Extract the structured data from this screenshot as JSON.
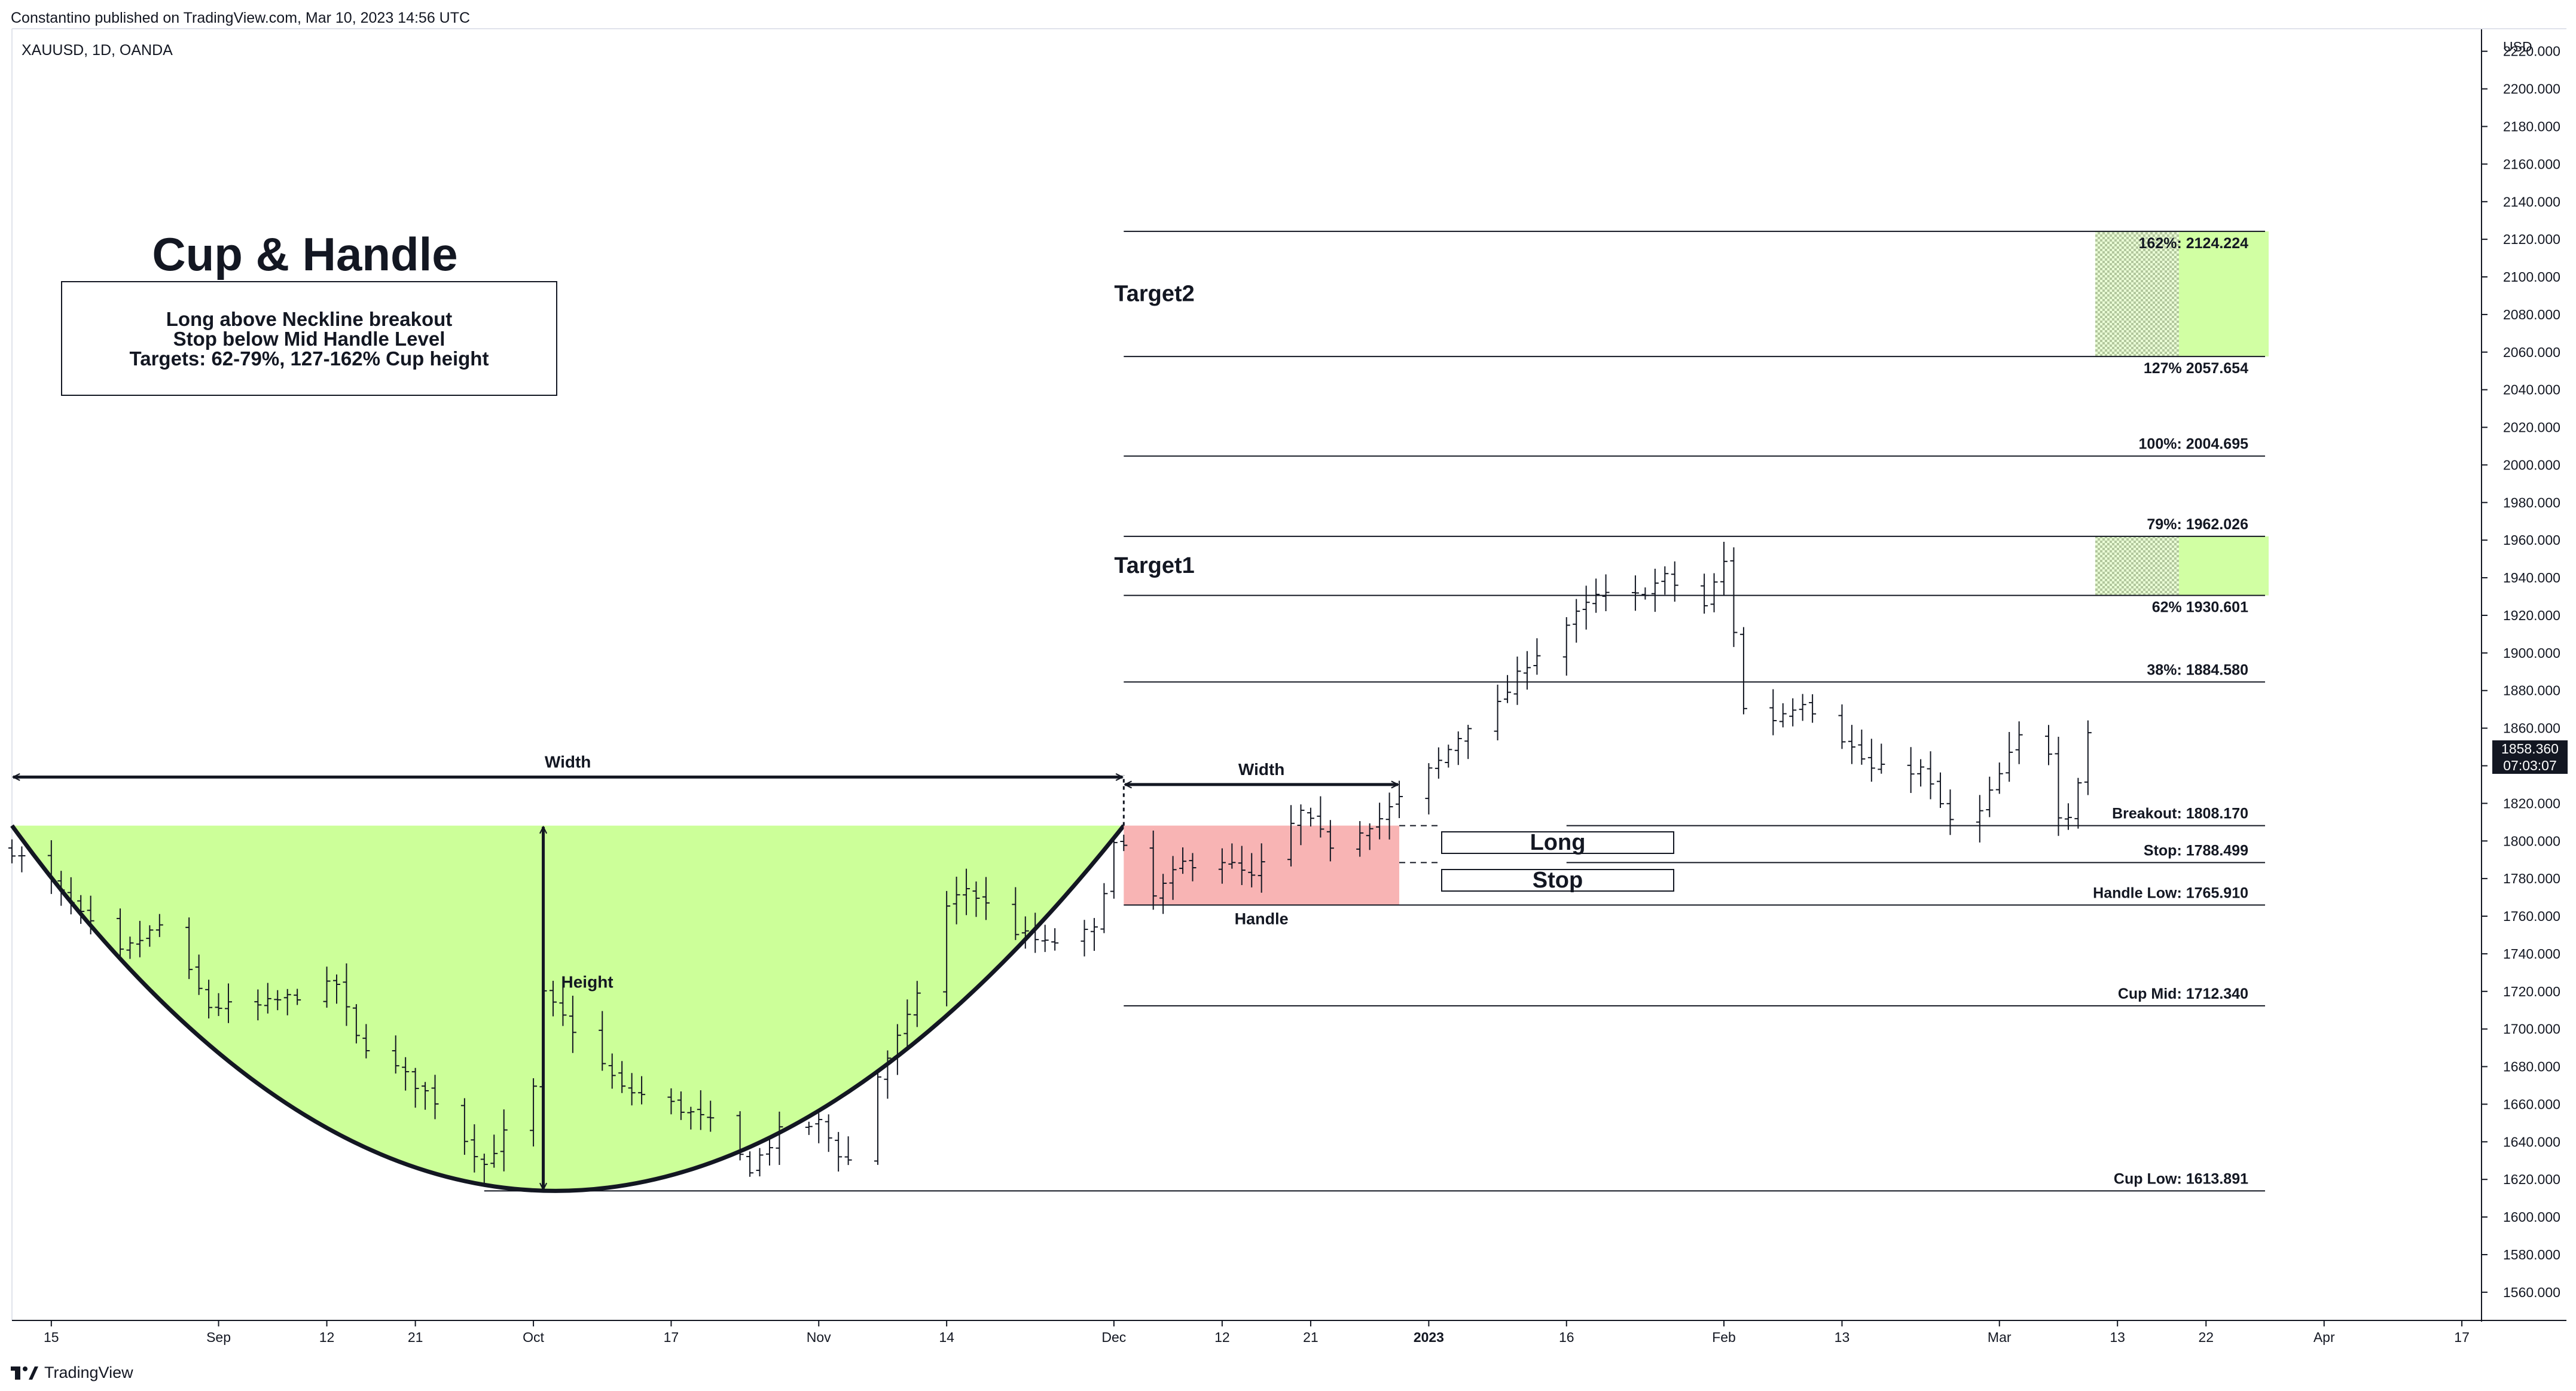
{
  "header": {
    "published": "Constantino published on TradingView.com, Mar 10, 2023 14:56 UTC",
    "symbol": "XAUUSD, 1D, OANDA"
  },
  "footer": {
    "brand": "TradingView"
  },
  "colors": {
    "cup_fill": "#ccff99",
    "handle_fill": "#f8b4b4",
    "target_fill": "#ccff99",
    "price_tag": "#131722"
  },
  "chart_data": {
    "type": "bar",
    "title": "Cup & Handle",
    "subtitle_lines": [
      "Long above Neckline breakout",
      "Stop below Mid Handle Level",
      "Targets: 62-79%, 127-162% Cup height"
    ],
    "symbol": "XAUUSD",
    "interval": "1D",
    "source": "OANDA",
    "y_axis": {
      "unit_label": "USD",
      "ylim": [
        1545,
        2232
      ],
      "ticks": [
        2220,
        2200,
        2180,
        2160,
        2140,
        2120,
        2100,
        2080,
        2060,
        2040,
        2020,
        2000,
        1980,
        1960,
        1940,
        1920,
        1900,
        1880,
        1860,
        1840,
        1820,
        1800,
        1780,
        1760,
        1740,
        1720,
        1700,
        1680,
        1660,
        1640,
        1620,
        1600,
        1580,
        1560
      ],
      "tick_labels": [
        "2220.000",
        "2200.000",
        "2180.000",
        "2160.000",
        "2140.000",
        "2120.000",
        "2100.000",
        "2080.000",
        "2060.000",
        "2040.000",
        "2020.000",
        "2000.000",
        "1980.000",
        "1960.000",
        "1940.000",
        "1920.000",
        "1900.000",
        "1880.000",
        "1860.000",
        "1840.000",
        "1820.000",
        "1800.000",
        "1780.000",
        "1760.000",
        "1740.000",
        "1720.000",
        "1700.000",
        "1680.000",
        "1660.000",
        "1640.000",
        "1620.000",
        "1600.000",
        "1580.000",
        "1560.000"
      ]
    },
    "x_axis": {
      "range": [
        "2022-08-11",
        "2023-04-19"
      ],
      "ticks": [
        {
          "date": "2022-08-15",
          "label": "15"
        },
        {
          "date": "2022-09-01",
          "label": "Sep"
        },
        {
          "date": "2022-09-12",
          "label": "12"
        },
        {
          "date": "2022-09-21",
          "label": "21"
        },
        {
          "date": "2022-10-03",
          "label": "Oct"
        },
        {
          "date": "2022-10-17",
          "label": "17"
        },
        {
          "date": "2022-11-01",
          "label": "Nov"
        },
        {
          "date": "2022-11-14",
          "label": "14"
        },
        {
          "date": "2022-12-01",
          "label": "Dec"
        },
        {
          "date": "2022-12-12",
          "label": "12"
        },
        {
          "date": "2022-12-21",
          "label": "21"
        },
        {
          "date": "2023-01-02",
          "label": "2023",
          "bold": true
        },
        {
          "date": "2023-01-16",
          "label": "16"
        },
        {
          "date": "2023-02-01",
          "label": "Feb"
        },
        {
          "date": "2023-02-13",
          "label": "13"
        },
        {
          "date": "2023-03-01",
          "label": "Mar"
        },
        {
          "date": "2023-03-13",
          "label": "13"
        },
        {
          "date": "2023-03-22",
          "label": "22"
        },
        {
          "date": "2023-04-03",
          "label": "Apr"
        },
        {
          "date": "2023-04-17",
          "label": "17"
        }
      ]
    },
    "current_price": {
      "value": "1858.360",
      "countdown": "07:03:07"
    },
    "price_path": [
      [
        "2022-08-11",
        1795
      ],
      [
        "2022-08-15",
        1778
      ],
      [
        "2022-08-18",
        1760
      ],
      [
        "2022-08-22",
        1740
      ],
      [
        "2022-08-26",
        1755
      ],
      [
        "2022-08-31",
        1712
      ],
      [
        "2022-09-05",
        1712
      ],
      [
        "2022-09-09",
        1718
      ],
      [
        "2022-09-13",
        1724
      ],
      [
        "2022-09-15",
        1695
      ],
      [
        "2022-09-20",
        1675
      ],
      [
        "2022-09-23",
        1662
      ],
      [
        "2022-09-28",
        1628
      ],
      [
        "2022-10-03",
        1668
      ],
      [
        "2022-10-04",
        1718
      ],
      [
        "2022-10-07",
        1700
      ],
      [
        "2022-10-12",
        1668
      ],
      [
        "2022-10-17",
        1660
      ],
      [
        "2022-10-21",
        1650
      ],
      [
        "2022-10-25",
        1626
      ],
      [
        "2022-10-28",
        1645
      ],
      [
        "2022-11-01",
        1650
      ],
      [
        "2022-11-03",
        1634
      ],
      [
        "2022-11-04",
        1630
      ],
      [
        "2022-11-07",
        1675
      ],
      [
        "2022-11-10",
        1705
      ],
      [
        "2022-11-14",
        1765
      ],
      [
        "2022-11-16",
        1775
      ],
      [
        "2022-11-21",
        1752
      ],
      [
        "2022-11-24",
        1745
      ],
      [
        "2022-11-29",
        1752
      ],
      [
        "2022-12-01",
        1798
      ],
      [
        "2022-12-02",
        1795
      ],
      [
        "2022-12-05",
        1770
      ],
      [
        "2022-12-08",
        1788
      ],
      [
        "2022-12-12",
        1790
      ],
      [
        "2022-12-15",
        1780
      ],
      [
        "2022-12-20",
        1815
      ],
      [
        "2022-12-23",
        1798
      ],
      [
        "2022-12-28",
        1812
      ],
      [
        "2022-12-30",
        1822
      ],
      [
        "2023-01-03",
        1842
      ],
      [
        "2023-01-06",
        1862
      ],
      [
        "2023-01-09",
        1872
      ],
      [
        "2023-01-12",
        1895
      ],
      [
        "2023-01-16",
        1915
      ],
      [
        "2023-01-19",
        1930
      ],
      [
        "2023-01-23",
        1930
      ],
      [
        "2023-01-26",
        1940
      ],
      [
        "2023-01-30",
        1925
      ],
      [
        "2023-02-01",
        1948
      ],
      [
        "2023-02-02",
        1912
      ],
      [
        "2023-02-03",
        1870
      ],
      [
        "2023-02-06",
        1865
      ],
      [
        "2023-02-09",
        1875
      ],
      [
        "2023-02-13",
        1855
      ],
      [
        "2023-02-16",
        1838
      ],
      [
        "2023-02-21",
        1838
      ],
      [
        "2023-02-24",
        1810
      ],
      [
        "2023-02-27",
        1815
      ],
      [
        "2023-03-01",
        1835
      ],
      [
        "2023-03-03",
        1855
      ],
      [
        "2023-03-06",
        1848
      ],
      [
        "2023-03-07",
        1815
      ],
      [
        "2023-03-08",
        1815
      ],
      [
        "2023-03-09",
        1832
      ],
      [
        "2023-03-10",
        1858
      ]
    ],
    "levels": [
      {
        "value": 2124.224,
        "label": "162%: 2124.224",
        "from": "2022-12-02",
        "to": "2023-03-28"
      },
      {
        "value": 2057.654,
        "label": "127% 2057.654",
        "from": "2022-12-02",
        "to": "2023-03-28"
      },
      {
        "value": 2004.695,
        "label": "100%: 2004.695",
        "from": "2022-12-02",
        "to": "2023-03-28"
      },
      {
        "value": 1962.026,
        "label": "79%: 1962.026",
        "from": "2022-12-02",
        "to": "2023-03-28"
      },
      {
        "value": 1930.601,
        "label": "62% 1930.601",
        "from": "2022-12-02",
        "to": "2023-03-28"
      },
      {
        "value": 1884.58,
        "label": "38%: 1884.580",
        "from": "2022-12-02",
        "to": "2023-03-28"
      },
      {
        "value": 1808.17,
        "label": "Breakout: 1808.170",
        "from": "2023-01-16",
        "to": "2023-03-28"
      },
      {
        "value": 1788.499,
        "label": "Stop: 1788.499",
        "from": "2023-01-16",
        "to": "2023-03-28"
      },
      {
        "value": 1765.91,
        "label": "Handle Low: 1765.910",
        "from": "2022-12-02",
        "to": "2023-03-28"
      },
      {
        "value": 1712.34,
        "label": "Cup Mid: 1712.340",
        "from": "2022-12-02",
        "to": "2023-03-28"
      },
      {
        "value": 1613.891,
        "label": "Cup Low: 1613.891",
        "from": "2022-09-28",
        "to": "2023-03-28"
      }
    ],
    "targets": [
      {
        "label": "Target2",
        "top": 2124.224,
        "bottom": 2057.654
      },
      {
        "label": "Target1",
        "top": 1962.026,
        "bottom": 1930.601
      }
    ],
    "cup": {
      "start": "2022-08-11",
      "bottom": "2022-10-04",
      "end": "2022-12-02",
      "rim": 1808.17,
      "low": 1613.891
    },
    "handle": {
      "start": "2022-12-02",
      "end": "2022-12-30",
      "top": 1808.17,
      "bottom": 1765.91,
      "label": "Handle"
    },
    "annotations": {
      "cup_width_label": "Width",
      "handle_width_label": "Width",
      "height_label": "Height",
      "long_label": "Long",
      "stop_label": "Stop"
    }
  }
}
